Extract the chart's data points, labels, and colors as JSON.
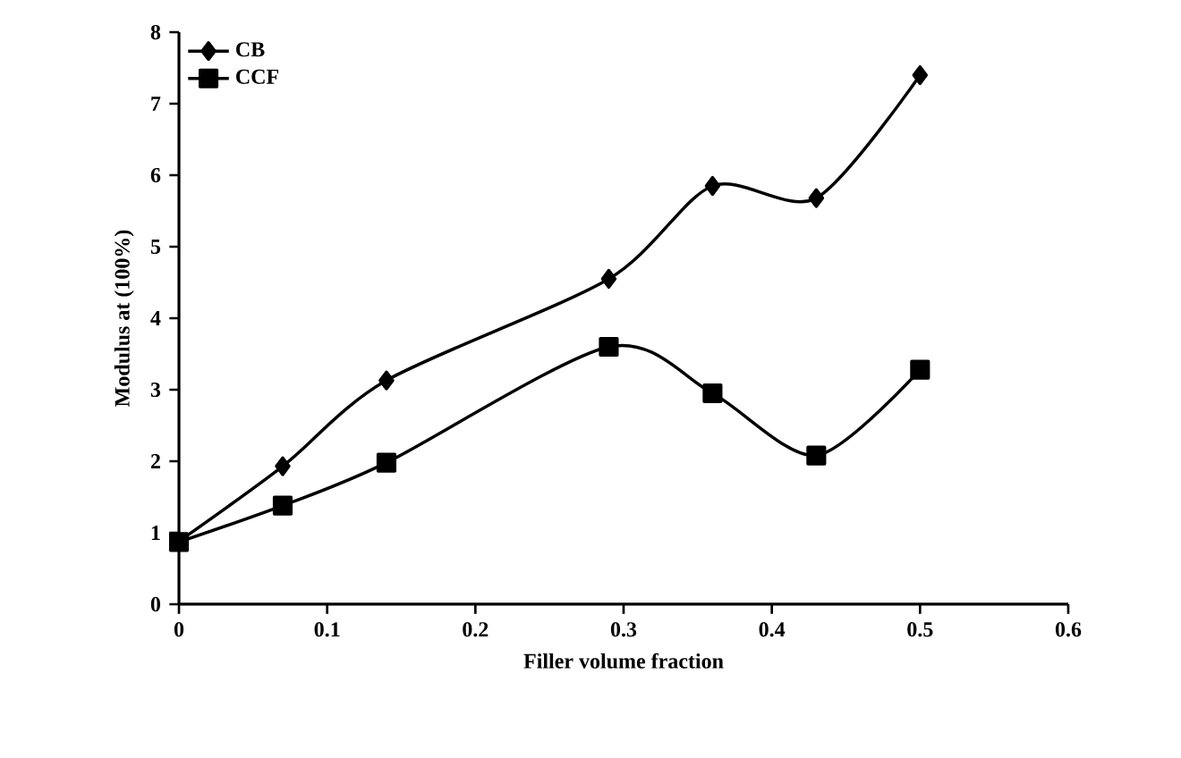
{
  "chart_data": {
    "type": "line",
    "xlabel": "Filler volume fraction",
    "ylabel": "Modulus at (100%)",
    "x": [
      0,
      0.07,
      0.14,
      0.29,
      0.36,
      0.43,
      0.5
    ],
    "series": [
      {
        "name": "CB",
        "color": "#000000",
        "marker": "diamond",
        "values": [
          0.88,
          1.93,
          3.13,
          4.55,
          5.85,
          5.68,
          7.4
        ]
      },
      {
        "name": "CCF",
        "color": "#000000",
        "marker": "square",
        "values": [
          0.87,
          1.38,
          1.98,
          3.6,
          2.95,
          2.08,
          3.28
        ]
      }
    ],
    "xlim": [
      0,
      0.6
    ],
    "ylim": [
      0,
      8
    ],
    "xticks": [
      0,
      0.1,
      0.2,
      0.3,
      0.4,
      0.5,
      0.6
    ],
    "yticks": [
      0,
      1,
      2,
      3,
      4,
      5,
      6,
      7,
      8
    ],
    "grid": false,
    "legend": "top left",
    "line_style": "solid"
  }
}
